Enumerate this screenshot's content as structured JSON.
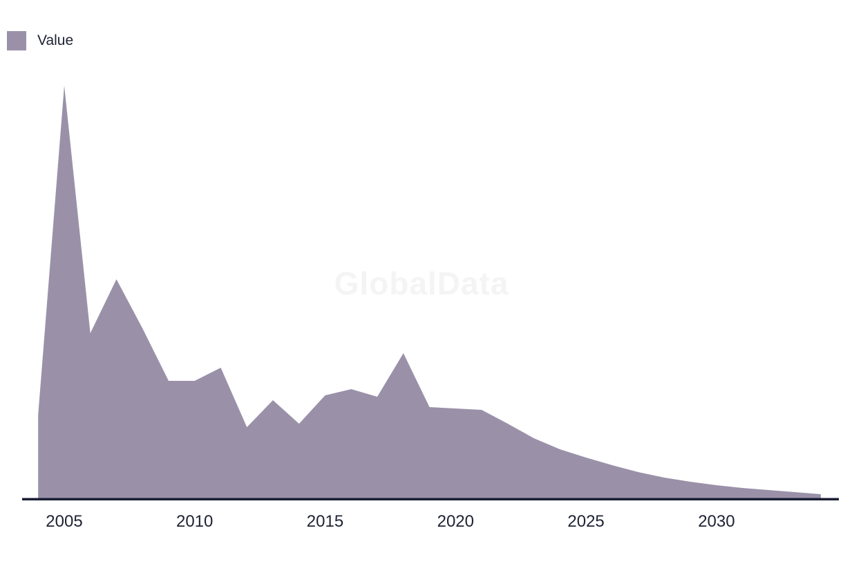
{
  "legend": {
    "label": "Value",
    "swatch_color": "#9a91a9"
  },
  "watermark": {
    "text": "GlobalData",
    "color": "#f4f4f5"
  },
  "colors": {
    "series_fill": "#9a91a9",
    "axis_line": "#1a1e33",
    "tick_text": "#1e2233",
    "background": "#ffffff"
  },
  "chart_data": {
    "type": "area",
    "title": "",
    "xlabel": "",
    "ylabel": "",
    "x_range": [
      2004,
      2034
    ],
    "x_ticks": [
      "2005",
      "2010",
      "2015",
      "2020",
      "2025",
      "2030"
    ],
    "x_tick_years": [
      2005,
      2010,
      2015,
      2020,
      2025,
      2030
    ],
    "y_axis_visible": false,
    "grid": false,
    "legend_position": "top-left",
    "watermark": "GlobalData",
    "note": "No y-axis or data labels shown; values are relative heights estimated from pixels (arbitrary units)",
    "series": [
      {
        "name": "Value",
        "color": "#9a91a9",
        "x": [
          2004,
          2005,
          2006,
          2007,
          2008,
          2009,
          2010,
          2011,
          2012,
          2013,
          2014,
          2015,
          2016,
          2017,
          2018,
          2019,
          2020,
          2021,
          2022,
          2023,
          2024,
          2025,
          2026,
          2027,
          2028,
          2029,
          2030,
          2031,
          2032,
          2033,
          2034
        ],
        "values": [
          121,
          597,
          239,
          317,
          246,
          170,
          170,
          189,
          103,
          142,
          108,
          149,
          158,
          147,
          210,
          132,
          130,
          128,
          108,
          87,
          71,
          59,
          48,
          38,
          30,
          24,
          19,
          15,
          12,
          9,
          6
        ]
      }
    ]
  }
}
